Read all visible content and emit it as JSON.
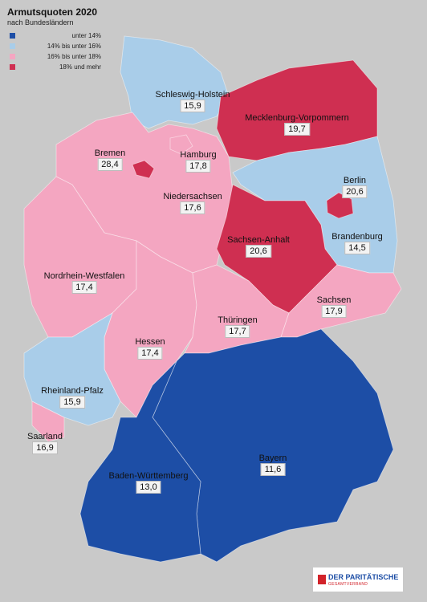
{
  "title": "Armutsquoten 2020",
  "subtitle": "nach Bundesländern",
  "legend": [
    {
      "label": "unter 14%",
      "color": "#1d4ea6"
    },
    {
      "label": "14% bis unter 16%",
      "color": "#a9cde9"
    },
    {
      "label": "16% bis unter 18%",
      "color": "#f4a6c1"
    },
    {
      "label": "18% und mehr",
      "color": "#cf2f51"
    }
  ],
  "states": [
    {
      "name": "Schleswig-Holstein",
      "value": "15,9",
      "color": "#a9cde9"
    },
    {
      "name": "Mecklenburg-Vorpommern",
      "value": "19,7",
      "color": "#cf2f51"
    },
    {
      "name": "Bremen",
      "value": "28,4",
      "color": "#cf2f51"
    },
    {
      "name": "Hamburg",
      "value": "17,8",
      "color": "#f4a6c1"
    },
    {
      "name": "Berlin",
      "value": "20,6",
      "color": "#cf2f51"
    },
    {
      "name": "Niedersachsen",
      "value": "17,6",
      "color": "#f4a6c1"
    },
    {
      "name": "Brandenburg",
      "value": "14,5",
      "color": "#a9cde9"
    },
    {
      "name": "Sachsen-Anhalt",
      "value": "20,6",
      "color": "#cf2f51"
    },
    {
      "name": "Nordrhein-Westfalen",
      "value": "17,4",
      "color": "#f4a6c1"
    },
    {
      "name": "Sachsen",
      "value": "17,9",
      "color": "#f4a6c1"
    },
    {
      "name": "Thüringen",
      "value": "17,7",
      "color": "#f4a6c1"
    },
    {
      "name": "Hessen",
      "value": "17,4",
      "color": "#f4a6c1"
    },
    {
      "name": "Rheinland-Pfalz",
      "value": "15,9",
      "color": "#a9cde9"
    },
    {
      "name": "Saarland",
      "value": "16,9",
      "color": "#f4a6c1"
    },
    {
      "name": "Bayern",
      "value": "11,6",
      "color": "#1d4ea6"
    },
    {
      "name": "Baden-Württemberg",
      "value": "13,0",
      "color": "#1d4ea6"
    }
  ],
  "logo": {
    "name": "DER PARITÄTISCHE",
    "sub": "GESAMTVERBAND"
  }
}
